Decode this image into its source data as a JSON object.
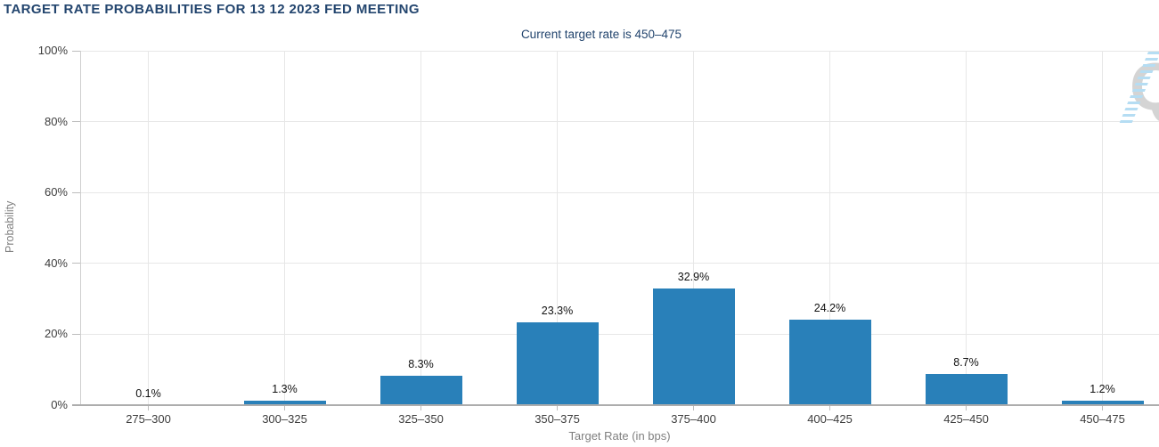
{
  "chart_data": {
    "type": "bar",
    "title": "TARGET RATE PROBABILITIES FOR 13 12 2023 FED MEETING",
    "subtitle": "Current target rate is 450–475",
    "categories": [
      "275–300",
      "300–325",
      "325–350",
      "350–375",
      "375–400",
      "400–425",
      "425–450",
      "450–475"
    ],
    "values": [
      0.1,
      1.3,
      8.3,
      23.3,
      32.9,
      24.2,
      8.7,
      1.2
    ],
    "value_labels": [
      "0.1%",
      "1.3%",
      "8.3%",
      "23.3%",
      "32.9%",
      "24.2%",
      "8.7%",
      "1.2%"
    ],
    "xlabel": "Target Rate (in bps)",
    "ylabel": "Probability",
    "ylim": [
      0,
      100
    ],
    "y_tick_values": [
      0,
      20,
      40,
      60,
      80,
      100
    ],
    "y_tick_labels": [
      "0%",
      "20%",
      "40%",
      "60%",
      "80%",
      "100%"
    ],
    "grid": true,
    "legend": false,
    "bar_color": "#2980b9"
  },
  "colors": {
    "bar": "#2980b9",
    "title_text": "#23456e",
    "axis_text": "#3d3d3d",
    "muted_text": "#7f7f7f",
    "gridline": "#e7e7e7",
    "baseline": "#adadad",
    "axis_line": "#cfcfcf",
    "tick": "#bdbdbd",
    "watermark_gray": "#d4d4d4",
    "watermark_blue": "#b5ddf3"
  },
  "watermark": {
    "letter": "Q"
  }
}
